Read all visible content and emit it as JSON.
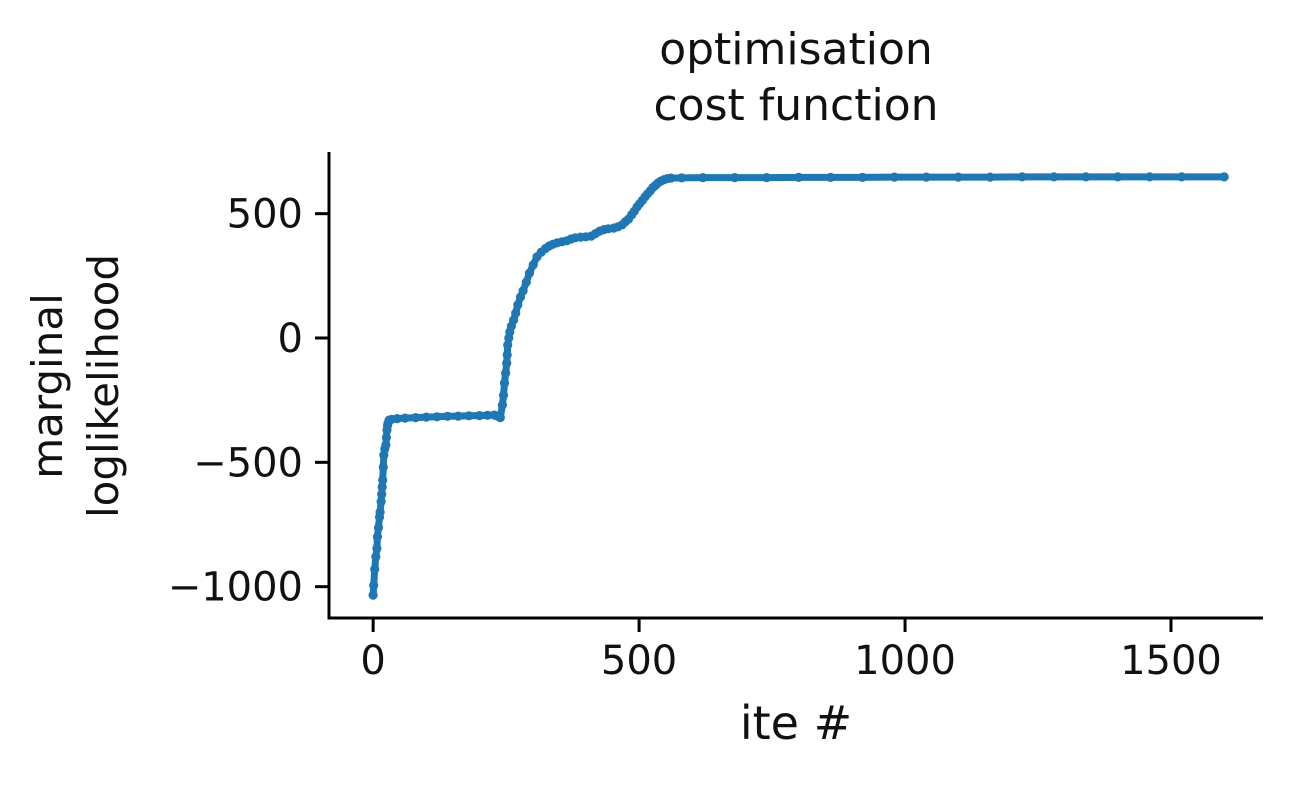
{
  "title": {
    "line1": "optimisation",
    "line2": "cost function"
  },
  "axes": {
    "xlabel": "ite #",
    "ylabel_line1": "marginal",
    "ylabel_line2": "loglikelihood"
  },
  "colors": {
    "line": "#1f77b4",
    "text": "#111111",
    "spine": "#000000",
    "background": "#ffffff"
  },
  "chart_data": {
    "type": "line",
    "title": "optimisation cost function",
    "xlabel": "ite #",
    "ylabel": "marginal loglikelihood",
    "legend": "none",
    "grid": false,
    "marker": "dot",
    "line_color": "#1f77b4",
    "xlim": [
      -83,
      1673
    ],
    "ylim": [
      -1126,
      740
    ],
    "x_ticks": [
      {
        "value": 0,
        "label": "0"
      },
      {
        "value": 500,
        "label": "500"
      },
      {
        "value": 1000,
        "label": "1000"
      },
      {
        "value": 1500,
        "label": "1500"
      }
    ],
    "y_ticks": [
      {
        "value": -1000,
        "label": "−1000"
      },
      {
        "value": -500,
        "label": "−500"
      },
      {
        "value": 0,
        "label": "0"
      },
      {
        "value": 500,
        "label": "500"
      }
    ],
    "series": [
      {
        "name": "marginal loglikelihood",
        "x": [
          0,
          1,
          3,
          5,
          7,
          8,
          10,
          12,
          13,
          15,
          16,
          17,
          18,
          19,
          20,
          22,
          24,
          25,
          26,
          27,
          28,
          30,
          35,
          45,
          60,
          80,
          100,
          120,
          140,
          160,
          180,
          200,
          215,
          228,
          234,
          239,
          243,
          245,
          247,
          249,
          251,
          252,
          253,
          255,
          257,
          260,
          264,
          268,
          272,
          277,
          282,
          288,
          294,
          301,
          308,
          316,
          324,
          331,
          338,
          346,
          355,
          364,
          372,
          380,
          390,
          400,
          410,
          418,
          426,
          434,
          442,
          452,
          460,
          468,
          474,
          480,
          486,
          491,
          496,
          501,
          506,
          511,
          516,
          521,
          526,
          531,
          536,
          541,
          547,
          553,
          560,
          580,
          620,
          680,
          740,
          800,
          860,
          920,
          980,
          1040,
          1100,
          1160,
          1220,
          1280,
          1340,
          1400,
          1460,
          1520,
          1600
        ],
        "y": [
          -1034,
          -995,
          -930,
          -880,
          -846,
          -800,
          -762,
          -720,
          -700,
          -658,
          -628,
          -599,
          -571,
          -520,
          -471,
          -446,
          -430,
          -400,
          -370,
          -352,
          -342,
          -330,
          -327,
          -324,
          -322,
          -320,
          -318,
          -317,
          -315,
          -314,
          -313,
          -312,
          -311,
          -310,
          -314,
          -320,
          -270,
          -230,
          -181,
          -141,
          -101,
          -68,
          -28,
          0,
          24,
          48,
          72,
          100,
          133,
          165,
          190,
          225,
          261,
          294,
          326,
          345,
          360,
          370,
          377,
          383,
          387,
          391,
          398,
          403,
          406,
          407,
          410,
          420,
          430,
          436,
          439,
          442,
          447,
          455,
          467,
          478,
          495,
          510,
          527,
          540,
          553,
          567,
          580,
          592,
          605,
          614,
          624,
          631,
          637,
          641,
          643,
          644,
          645,
          645,
          645,
          646,
          646,
          646,
          647,
          647,
          647,
          647,
          648,
          648,
          648,
          648,
          648,
          648,
          648
        ]
      }
    ]
  }
}
